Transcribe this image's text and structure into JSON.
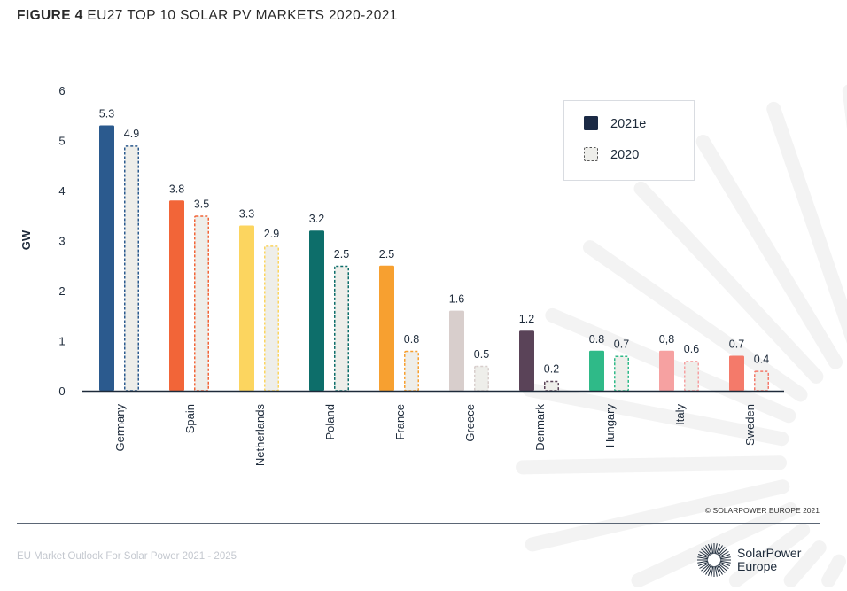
{
  "title": {
    "prefix": "FIGURE 4",
    "text": "EU27 TOP 10 SOLAR PV MARKETS 2020-2021"
  },
  "footer": {
    "left": "EU Market Outlook For Solar Power 2021 - 2025",
    "copyright": "© SOLARPOWER EUROPE 2021",
    "logo": "SolarPower Europe"
  },
  "chart_data": {
    "type": "bar",
    "title": "EU27 TOP 10 SOLAR PV MARKETS 2020-2021",
    "ylabel": "GW",
    "xlabel": "",
    "ylim": [
      0,
      6
    ],
    "yticks": [
      0,
      1,
      2,
      3,
      4,
      5,
      6
    ],
    "grid": false,
    "legend_position": "top-right",
    "categories": [
      "Germany",
      "Spain",
      "Netherlands",
      "Poland",
      "France",
      "Greece",
      "Denmark",
      "Hungary",
      "Italy",
      "Sweden"
    ],
    "category_colors": [
      "#2b5a8e",
      "#f26538",
      "#fcd55f",
      "#0d6e6a",
      "#f7a030",
      "#d8cecc",
      "#5a4358",
      "#2fba88",
      "#f6a1a1",
      "#f47a6a"
    ],
    "series": [
      {
        "name": "2021e",
        "values": [
          5.3,
          3.8,
          3.3,
          3.2,
          2.5,
          1.6,
          1.2,
          0.8,
          0.8,
          0.7
        ],
        "labels": [
          "5.3",
          "3.8",
          "3.3",
          "3.2",
          "2.5",
          "1.6",
          "1.2",
          "0.8",
          "0,8",
          "0.7"
        ],
        "legend_color": "#1b2a45"
      },
      {
        "name": "2020",
        "values": [
          4.9,
          3.5,
          2.9,
          2.5,
          0.8,
          0.5,
          0.2,
          0.7,
          0.6,
          0.4
        ],
        "labels": [
          "4.9",
          "3.5",
          "2.9",
          "2.5",
          "0.8",
          "0.5",
          "0.2",
          "0.7",
          "0.6",
          "0.4"
        ],
        "legend_color": "#eeeeea"
      }
    ]
  }
}
